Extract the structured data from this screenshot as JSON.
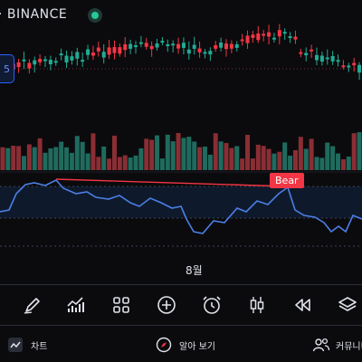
{
  "header": {
    "exchange_label": "· BINANCE"
  },
  "left_badge": {
    "text": "5"
  },
  "indicator": {
    "divergence_label": "Bear"
  },
  "time_axis": {
    "month_label": "8월"
  },
  "toolbar": {
    "tools": [
      {
        "name": "draw-tool-button",
        "icon": "pen-icon"
      },
      {
        "name": "indicators-button",
        "icon": "chart-line-icon"
      },
      {
        "name": "layouts-button",
        "icon": "grid-icon"
      },
      {
        "name": "add-button",
        "icon": "plus-circle-icon"
      },
      {
        "name": "alert-button",
        "icon": "alarm-clock-icon"
      },
      {
        "name": "chart-type-button",
        "icon": "candles-icon"
      },
      {
        "name": "replay-button",
        "icon": "rewind-icon"
      },
      {
        "name": "layers-button",
        "icon": "layers-icon"
      }
    ]
  },
  "bottom_nav": {
    "chart_label": "차트",
    "explore_label": "알아 보기",
    "community_label": "커뮤니티"
  },
  "colors": {
    "up": "#22ab94",
    "down": "#f23645",
    "volume_up": "#1f6b5e",
    "volume_down": "#8a2e34",
    "rsi_line": "#4c7ee6",
    "divergence": "#f23645",
    "background": "#0b0b0d"
  }
}
